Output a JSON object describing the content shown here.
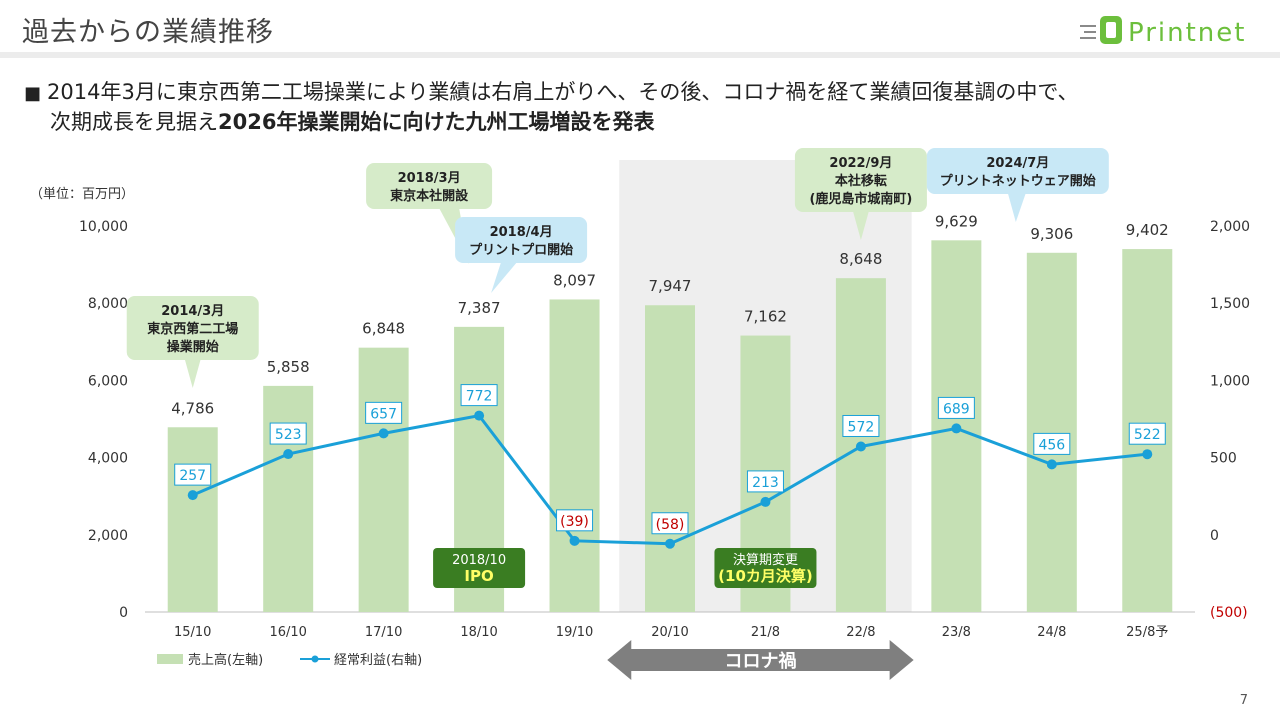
{
  "page": {
    "title": "過去からの業績推移",
    "lead_prefix": "2014年3月に東京西第二工場操業により業績は右肩上がりへ、その後、コロナ禍を経て業績回復基調の中で、",
    "lead_line2_normal": "次期成長を見据え",
    "lead_line2_bold": "2026年操業開始に向けた九州工場増設を発表",
    "bullet": "■",
    "page_number": "7"
  },
  "logo": {
    "text": "Printnet",
    "color": "#6cbf3c"
  },
  "chart_data": {
    "type": "bar",
    "unit_label": "（単位：百万円）",
    "categories": [
      "15/10",
      "16/10",
      "17/10",
      "18/10",
      "19/10",
      "20/10",
      "21/8",
      "22/8",
      "23/8",
      "24/8",
      "25/8予"
    ],
    "series": [
      {
        "name": "売上高(左軸)",
        "type": "bar",
        "axis": "left",
        "values": [
          4786,
          5858,
          6848,
          7387,
          8097,
          7947,
          7162,
          8648,
          9629,
          9306,
          9402
        ],
        "labels": [
          "4,786",
          "5,858",
          "6,848",
          "7,387",
          "8,097",
          "7,947",
          "7,162",
          "8,648",
          "9,629",
          "9,306",
          "9,402"
        ],
        "color": "#c5e0b4"
      },
      {
        "name": "経常利益(右軸)",
        "type": "line",
        "axis": "right",
        "values": [
          257,
          523,
          657,
          772,
          -39,
          -58,
          213,
          572,
          689,
          456,
          522
        ],
        "labels": [
          "257",
          "523",
          "657",
          "772",
          "(39)",
          "(58)",
          "213",
          "572",
          "689",
          "456",
          "522"
        ],
        "color": "#1aa0d8",
        "negative_label_color": "#c00000"
      }
    ],
    "left_axis": {
      "min": 0,
      "max": 10000,
      "ticks": [
        0,
        2000,
        4000,
        6000,
        8000,
        10000
      ],
      "tick_labels": [
        "0",
        "2,000",
        "4,000",
        "6,000",
        "8,000",
        "10,000"
      ]
    },
    "right_axis": {
      "min": -500,
      "max": 2000,
      "ticks": [
        -500,
        0,
        500,
        1000,
        1500,
        2000
      ],
      "tick_labels": [
        "(500)",
        "0",
        "500",
        "1,000",
        "1,500",
        "2,000"
      ],
      "negative_color": "#c00000"
    },
    "covid_band": {
      "from": "20/10",
      "to": "22/8",
      "label": "コロナ禍",
      "color": "#eeeeee",
      "arrow_color": "#7f7f7f"
    },
    "callouts": [
      {
        "lines": [
          "2014/3月",
          "東京西第二工場",
          "操業開始"
        ],
        "target": "15/10",
        "color": "#d6ebc9"
      },
      {
        "lines": [
          "2018/3月",
          "東京本社開設"
        ],
        "target": "18/10",
        "color": "#d6ebc9"
      },
      {
        "lines": [
          "2018/4月",
          "プリントプロ開始"
        ],
        "target": "18/10",
        "color": "#c8e8f6"
      },
      {
        "lines": [
          "2022/9月",
          "本社移転",
          "(鹿児島市城南町)"
        ],
        "target": "22/8",
        "color": "#d6ebc9"
      },
      {
        "lines": [
          "2024/7月",
          "プリントネットウェア開始"
        ],
        "target": "24/8",
        "color": "#c8e8f6"
      }
    ],
    "badges": [
      {
        "lines": [
          "2018/10",
          "IPO"
        ],
        "target": "18/10",
        "color": "#3a7d22"
      },
      {
        "lines": [
          "決算期変更",
          "(10カ月決算)"
        ],
        "target": "21/8",
        "color": "#3a7d22"
      }
    ],
    "legend": {
      "position": "bottom-left"
    },
    "grid": false
  }
}
